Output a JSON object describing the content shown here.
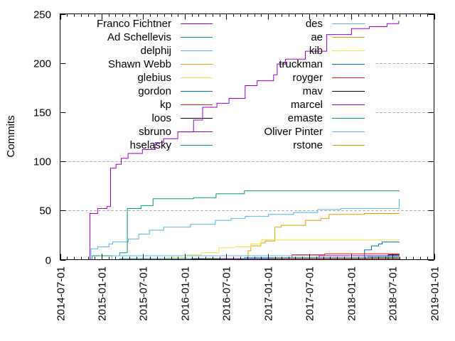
{
  "chart_data": {
    "type": "line",
    "title": "",
    "xlabel": "",
    "ylabel": "Commits",
    "xlim": [
      "2014-07-01",
      "2019-01-01"
    ],
    "ylim": [
      0,
      250
    ],
    "x_ticks": [
      "2014-07-01",
      "2015-01-01",
      "2015-07-01",
      "2016-01-01",
      "2016-07-01",
      "2017-01-01",
      "2017-07-01",
      "2018-01-01",
      "2018-07-01",
      "2019-01-01"
    ],
    "y_ticks": [
      0,
      50,
      100,
      150,
      200,
      250
    ],
    "grid": "horizontal dashed",
    "legend_position": "top-left, two columns",
    "line_style": "steps",
    "series": [
      {
        "name": "Franco Fichtner",
        "color": "#9400d3",
        "points": [
          [
            "2014-11-09",
            0
          ],
          [
            "2014-11-09",
            47
          ],
          [
            "2014-12-13",
            52
          ],
          [
            "2015-01-23",
            54
          ],
          [
            "2015-02-08",
            93
          ],
          [
            "2015-03-04",
            97
          ],
          [
            "2015-03-27",
            103
          ],
          [
            "2015-04-26",
            108
          ],
          [
            "2015-06-28",
            112
          ],
          [
            "2015-08-23",
            119
          ],
          [
            "2015-09-29",
            123
          ],
          [
            "2015-12-01",
            130
          ],
          [
            "2016-02-08",
            142
          ],
          [
            "2016-03-19",
            155
          ],
          [
            "2016-05-21",
            159
          ],
          [
            "2016-07-13",
            164
          ],
          [
            "2016-09-22",
            177
          ],
          [
            "2016-11-14",
            182
          ],
          [
            "2017-01-25",
            188
          ],
          [
            "2017-02-10",
            199
          ],
          [
            "2017-03-19",
            204
          ],
          [
            "2017-06-14",
            212
          ],
          [
            "2017-09-16",
            229
          ],
          [
            "2018-01-03",
            235
          ],
          [
            "2018-03-22",
            237
          ],
          [
            "2018-06-08",
            240
          ],
          [
            "2018-07-30",
            243
          ]
        ]
      },
      {
        "name": "Ad Schellevis",
        "color": "#009e73",
        "points": [
          [
            "2014-11-12",
            0
          ],
          [
            "2014-11-20",
            4
          ],
          [
            "2015-03-20",
            7
          ],
          [
            "2015-04-23",
            52
          ],
          [
            "2015-06-22",
            55
          ],
          [
            "2015-08-14",
            62
          ],
          [
            "2016-02-08",
            63
          ],
          [
            "2016-05-17",
            67
          ],
          [
            "2016-09-19",
            70
          ],
          [
            "2018-08-02",
            70
          ]
        ]
      },
      {
        "name": "delphij",
        "color": "#56b4e9",
        "points": [
          [
            "2014-11-12",
            0
          ],
          [
            "2014-11-14",
            11
          ],
          [
            "2014-12-13",
            13
          ],
          [
            "2015-02-01",
            16
          ],
          [
            "2015-02-17",
            18
          ],
          [
            "2015-04-27",
            21
          ],
          [
            "2015-06-12",
            26
          ],
          [
            "2015-07-29",
            30
          ],
          [
            "2015-09-30",
            33
          ],
          [
            "2016-01-26",
            36
          ],
          [
            "2016-05-14",
            40
          ],
          [
            "2016-07-22",
            42
          ],
          [
            "2016-09-22",
            44
          ],
          [
            "2017-01-03",
            46
          ],
          [
            "2017-04-23",
            48
          ],
          [
            "2017-08-07",
            51
          ],
          [
            "2017-11-18",
            52
          ],
          [
            "2018-08-01",
            61
          ],
          [
            "2018-08-02",
            62
          ]
        ]
      },
      {
        "name": "Shawn Webb",
        "color": "#e69f00",
        "points": [
          [
            "2016-10-02",
            0
          ],
          [
            "2016-10-05",
            9
          ],
          [
            "2016-10-17",
            14
          ],
          [
            "2016-11-30",
            17
          ],
          [
            "2016-12-19",
            19
          ],
          [
            "2017-01-31",
            33
          ],
          [
            "2017-02-28",
            35
          ],
          [
            "2017-06-15",
            40
          ],
          [
            "2017-08-22",
            42
          ],
          [
            "2017-09-26",
            46
          ],
          [
            "2018-03-01",
            47
          ],
          [
            "2018-08-02",
            47
          ]
        ]
      },
      {
        "name": "glebius",
        "color": "#f0e442",
        "points": [
          [
            "2015-06-22",
            1
          ],
          [
            "2015-10-15",
            2
          ],
          [
            "2016-01-10",
            5
          ],
          [
            "2016-03-13",
            7
          ],
          [
            "2016-05-30",
            12
          ],
          [
            "2016-08-07",
            13
          ],
          [
            "2016-10-17",
            16
          ],
          [
            "2016-12-03",
            20
          ],
          [
            "2018-08-02",
            20
          ]
        ]
      },
      {
        "name": "gordon",
        "color": "#0072b2",
        "points": [
          [
            "2015-02-14",
            0
          ],
          [
            "2015-03-20",
            1
          ],
          [
            "2018-08-02",
            1
          ]
        ]
      },
      {
        "name": "kp",
        "color": "#e51e10",
        "points": [
          [
            "2017-04-16",
            0
          ],
          [
            "2017-04-16",
            5
          ],
          [
            "2017-09-07",
            6
          ],
          [
            "2018-08-02",
            6
          ]
        ]
      },
      {
        "name": "loos",
        "color": "#000000",
        "points": [
          [
            "2016-02-01",
            0
          ],
          [
            "2016-02-01",
            1
          ],
          [
            "2016-09-19",
            1
          ]
        ]
      },
      {
        "name": "sbruno",
        "color": "#9400d3",
        "points": [
          [
            "2015-08-01",
            0
          ],
          [
            "2016-06-01",
            1
          ],
          [
            "2018-08-02",
            1
          ]
        ]
      },
      {
        "name": "hselasky",
        "color": "#009e73",
        "points": [
          [
            "2016-09-19",
            0
          ],
          [
            "2016-09-19",
            2
          ],
          [
            "2018-08-02",
            2
          ]
        ]
      },
      {
        "name": "des",
        "color": "#56b4e9",
        "points": [
          [
            "2015-02-14",
            0
          ],
          [
            "2015-02-14",
            4
          ],
          [
            "2018-08-02",
            4
          ]
        ]
      },
      {
        "name": "ae",
        "color": "#e69f00",
        "points": [
          [
            "2016-12-19",
            0
          ],
          [
            "2017-03-01",
            1
          ],
          [
            "2018-08-02",
            1
          ]
        ]
      },
      {
        "name": "kib",
        "color": "#f0e442",
        "points": [
          [
            "2016-06-01",
            0
          ],
          [
            "2017-06-01",
            2
          ],
          [
            "2018-08-02",
            2
          ]
        ]
      },
      {
        "name": "truckman",
        "color": "#0072b2",
        "points": [
          [
            "2016-12-01",
            0
          ],
          [
            "2018-03-01",
            0
          ],
          [
            "2018-03-01",
            10
          ],
          [
            "2018-04-01",
            14
          ],
          [
            "2018-05-02",
            16
          ],
          [
            "2018-05-18",
            18
          ],
          [
            "2018-08-02",
            18
          ]
        ]
      },
      {
        "name": "royger",
        "color": "#e51e10",
        "points": [
          [
            "2016-12-15",
            0
          ],
          [
            "2017-01-01",
            1
          ],
          [
            "2018-08-02",
            1
          ]
        ]
      },
      {
        "name": "mav",
        "color": "#000000",
        "points": [
          [
            "2018-06-14",
            0
          ],
          [
            "2018-06-14",
            5
          ],
          [
            "2018-08-02",
            5
          ]
        ]
      },
      {
        "name": "marcel",
        "color": "#9400d3",
        "points": [
          [
            "2017-08-14",
            0
          ],
          [
            "2017-08-14",
            4
          ],
          [
            "2018-08-02",
            4
          ]
        ]
      },
      {
        "name": "emaste",
        "color": "#009e73",
        "points": [
          [
            "2016-10-01",
            0
          ],
          [
            "2017-01-01",
            2
          ],
          [
            "2018-08-02",
            2
          ]
        ]
      },
      {
        "name": "Oliver Pinter",
        "color": "#56b4e9",
        "points": [
          [
            "2016-09-01",
            0
          ],
          [
            "2016-10-01",
            2
          ],
          [
            "2018-03-15",
            3
          ],
          [
            "2018-08-02",
            3
          ]
        ]
      },
      {
        "name": "rstone",
        "color": "#e69f00",
        "points": [
          [
            "2016-12-19",
            0
          ],
          [
            "2018-08-02",
            0
          ]
        ]
      }
    ]
  }
}
